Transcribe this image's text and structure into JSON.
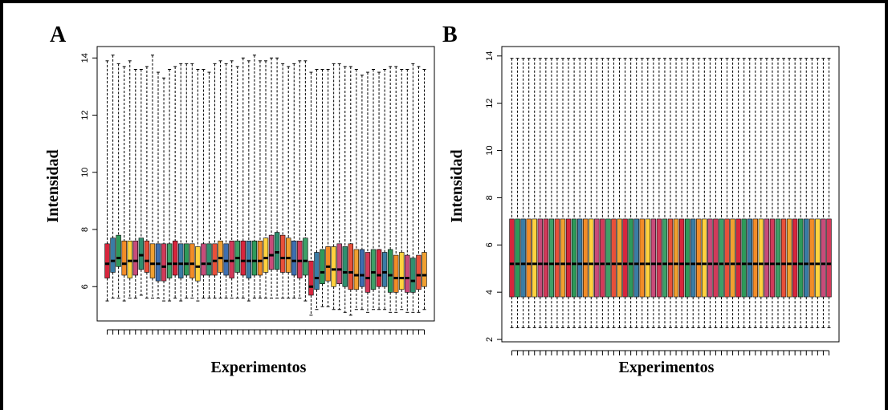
{
  "panels": [
    {
      "letter": "A"
    },
    {
      "letter": "B"
    }
  ],
  "chart_data": [
    {
      "type": "boxplot",
      "xlabel": "Experimentos",
      "ylabel": "Intensidad",
      "ylim": [
        4.8,
        14.4
      ],
      "yticks": [
        6,
        8,
        10,
        12,
        14
      ],
      "n_boxes": 57,
      "colors": [
        "#d7263d",
        "#3a7ca5",
        "#2e9a5a",
        "#f28c28",
        "#ffd23f",
        "#c84b7a",
        "#2f8f6f",
        "#e8503a",
        "#f0a030",
        "#3e6fb0",
        "#d23a5a",
        "#3ea068"
      ],
      "boxes": {
        "medians": [
          6.8,
          6.9,
          7.0,
          6.8,
          6.9,
          6.9,
          7.1,
          6.9,
          6.8,
          6.8,
          6.7,
          6.8,
          6.8,
          6.8,
          6.8,
          6.8,
          6.7,
          6.8,
          6.8,
          6.9,
          7.0,
          6.9,
          6.9,
          7.0,
          6.9,
          6.9,
          6.9,
          6.9,
          7.0,
          7.1,
          7.2,
          7.0,
          7.0,
          6.9,
          6.9,
          6.9,
          6.0,
          6.3,
          6.5,
          6.7,
          6.6,
          6.6,
          6.5,
          6.5,
          6.4,
          6.4,
          6.3,
          6.5,
          6.4,
          6.5,
          6.4,
          6.3,
          6.3,
          6.3,
          6.2,
          6.4,
          6.4
        ],
        "q1": [
          6.3,
          6.5,
          6.7,
          6.4,
          6.3,
          6.4,
          6.6,
          6.5,
          6.3,
          6.2,
          6.2,
          6.3,
          6.4,
          6.3,
          6.4,
          6.3,
          6.2,
          6.4,
          6.4,
          6.4,
          6.5,
          6.4,
          6.3,
          6.5,
          6.4,
          6.3,
          6.4,
          6.4,
          6.5,
          6.6,
          6.6,
          6.5,
          6.5,
          6.4,
          6.3,
          6.4,
          5.7,
          5.9,
          6.1,
          6.2,
          6.0,
          6.1,
          6.0,
          5.9,
          5.9,
          6.0,
          5.8,
          5.9,
          6.0,
          6.0,
          5.8,
          5.8,
          5.9,
          5.8,
          5.8,
          5.9,
          6.0
        ],
        "q3": [
          7.5,
          7.7,
          7.8,
          7.6,
          7.6,
          7.6,
          7.7,
          7.6,
          7.5,
          7.5,
          7.5,
          7.5,
          7.6,
          7.5,
          7.5,
          7.5,
          7.4,
          7.5,
          7.5,
          7.5,
          7.6,
          7.5,
          7.6,
          7.6,
          7.6,
          7.6,
          7.6,
          7.6,
          7.7,
          7.8,
          7.9,
          7.8,
          7.7,
          7.6,
          7.6,
          7.7,
          6.9,
          7.2,
          7.3,
          7.4,
          7.4,
          7.5,
          7.4,
          7.5,
          7.3,
          7.3,
          7.2,
          7.3,
          7.3,
          7.2,
          7.3,
          7.1,
          7.2,
          7.1,
          7.0,
          7.1,
          7.2
        ],
        "lower_whisker": [
          5.5,
          5.6,
          5.6,
          5.5,
          5.6,
          5.6,
          5.7,
          5.6,
          5.6,
          5.6,
          5.5,
          5.5,
          5.6,
          5.5,
          5.6,
          5.6,
          5.5,
          5.6,
          5.6,
          5.6,
          5.6,
          5.6,
          5.6,
          5.6,
          5.6,
          5.5,
          5.6,
          5.6,
          5.6,
          5.6,
          5.6,
          5.6,
          5.6,
          5.6,
          5.6,
          5.5,
          5.0,
          5.2,
          5.3,
          5.3,
          5.2,
          5.2,
          5.1,
          5.0,
          5.2,
          5.2,
          5.1,
          5.2,
          5.2,
          5.2,
          5.1,
          5.1,
          5.2,
          5.1,
          5.1,
          5.1,
          5.2
        ],
        "upper_whisker": [
          13.9,
          14.1,
          13.8,
          13.7,
          13.9,
          13.6,
          13.6,
          13.7,
          14.1,
          13.5,
          13.3,
          13.6,
          13.7,
          13.8,
          13.8,
          13.8,
          13.6,
          13.6,
          13.5,
          13.8,
          13.9,
          13.8,
          13.9,
          13.7,
          14.0,
          13.9,
          14.1,
          13.9,
          13.9,
          14.0,
          14.0,
          13.8,
          13.7,
          13.8,
          13.9,
          13.9,
          13.5,
          13.6,
          13.6,
          13.6,
          13.8,
          13.8,
          13.7,
          13.7,
          13.6,
          13.4,
          13.5,
          13.6,
          13.5,
          13.6,
          13.7,
          13.7,
          13.6,
          13.6,
          13.8,
          13.7,
          13.6
        ]
      }
    },
    {
      "type": "boxplot",
      "xlabel": "Experimentos",
      "ylabel": "Intensidad",
      "ylim": [
        1.9,
        14.4
      ],
      "yticks": [
        2,
        4,
        6,
        8,
        10,
        12,
        14
      ],
      "n_boxes": 57,
      "colors": [
        "#d7263d",
        "#2e9a5a",
        "#3a7ca5",
        "#f28c28",
        "#ffd23f",
        "#c84b7a",
        "#d23a5a",
        "#3ea068",
        "#e8503a",
        "#f0a030"
      ],
      "boxes": {
        "median": 5.2,
        "q1": 3.8,
        "q3": 7.1,
        "lower_whisker": 2.5,
        "upper_whisker": 13.9
      }
    }
  ]
}
